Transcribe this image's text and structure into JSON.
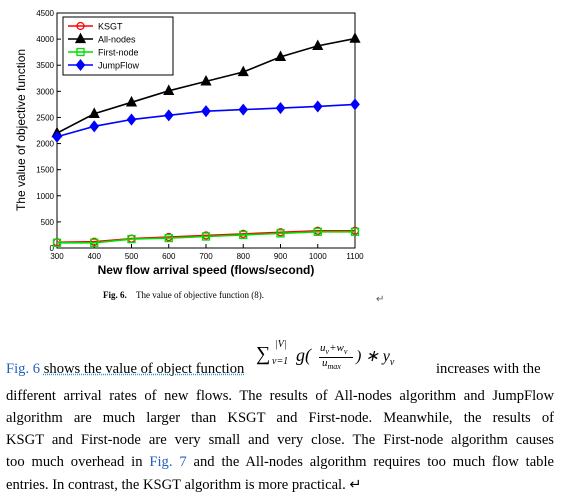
{
  "chart_data": {
    "type": "line",
    "x": [
      300,
      400,
      500,
      600,
      700,
      800,
      900,
      1000,
      1100
    ],
    "xlim": [
      300,
      1100
    ],
    "xticks": [
      300,
      400,
      500,
      600,
      700,
      800,
      900,
      1000,
      1100
    ],
    "ylim": [
      0,
      4500
    ],
    "yticks": [
      0,
      500,
      1000,
      1500,
      2000,
      2500,
      3000,
      3500,
      4000,
      4500
    ],
    "xlabel": "New flow arrival speed (flows/second)",
    "ylabel": "The value of objective function",
    "legend": "upper left",
    "series": [
      {
        "name": "KSGT",
        "color": "#ff0000",
        "marker": "circle",
        "values": [
          110,
          120,
          180,
          210,
          240,
          270,
          300,
          330,
          330
        ]
      },
      {
        "name": "All-nodes",
        "color": "#000000",
        "marker": "triangle",
        "values": [
          2200,
          2570,
          2790,
          3010,
          3190,
          3370,
          3660,
          3870,
          4010
        ]
      },
      {
        "name": "First-node",
        "color": "#00dd00",
        "marker": "square",
        "values": [
          100,
          100,
          170,
          190,
          220,
          250,
          280,
          310,
          310
        ]
      },
      {
        "name": "JumpFlow",
        "color": "#0000ff",
        "marker": "diamond",
        "values": [
          2130,
          2330,
          2460,
          2540,
          2620,
          2650,
          2680,
          2710,
          2750
        ]
      }
    ]
  },
  "caption": {
    "label": "Fig. 6.",
    "text": "The value of objective function (8).",
    "mark": "↵"
  },
  "paragraph": {
    "first_line": {
      "link": "Fig. 6",
      "before": "shows the value of object function",
      "after": "increases with the"
    },
    "formula": {
      "sum": "∑",
      "sup": "|V|",
      "sub": "v=1",
      "g": "g(",
      "num_u": "u",
      "num_u_sub": "v",
      "num_w": "+w",
      "num_w_sub": "v",
      "den": "u",
      "den_sub": "max",
      "tail": ") ∗ y",
      "tail_sub": "v"
    },
    "lines": [
      [
        "different arrival rates of new flows. The results of All-nodes algorithm and JumpFlow"
      ],
      [
        "algorithm are much larger than KSGT and First-node. Meanwhile, the results of"
      ],
      [
        "KSGT and First-node are very small and very close. The First-node algorithm causes"
      ],
      [
        "too much overhead in",
        "Fig. 7",
        "and the All-nodes algorithm requires too much flow table"
      ],
      [
        "entries. In contrast, the KSGT algorithm is more practical.  ↵"
      ]
    ]
  }
}
